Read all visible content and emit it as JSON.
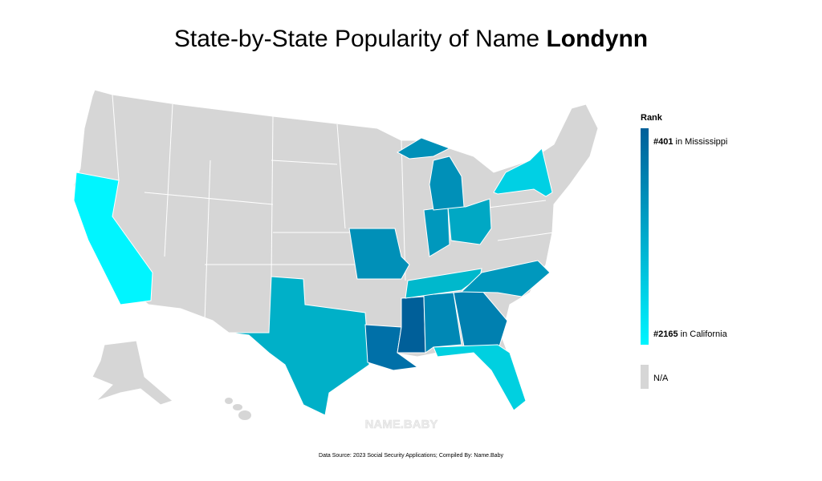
{
  "header": {
    "title": "State-by-State Popularity of Name",
    "name": "Londynn"
  },
  "legend": {
    "title": "Rank",
    "top": {
      "rank": "#401",
      "place": "in Mississippi",
      "color": "#005f99"
    },
    "bottom": {
      "rank": "#2165",
      "place": "in California",
      "color": "#00f5ff"
    },
    "na": {
      "label": "N/A",
      "color": "#d6d6d6"
    }
  },
  "watermark": "NAME.BABY",
  "footer": {
    "source": "Data Source: 2023 Social Security Applications; Compiled By: Name.Baby"
  }
}
